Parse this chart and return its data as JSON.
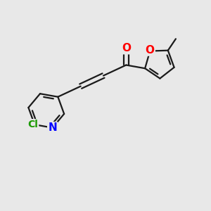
{
  "background_color": "#e8e8e8",
  "bond_color": "#1a1a1a",
  "atom_colors": {
    "O": "#ff0000",
    "N": "#0000ff",
    "Cl": "#1a9900",
    "C": "#1a1a1a"
  },
  "bond_width": 1.6,
  "font_size_atom": 11,
  "xlim": [
    -3.0,
    3.0
  ],
  "ylim": [
    -2.0,
    2.0
  ]
}
